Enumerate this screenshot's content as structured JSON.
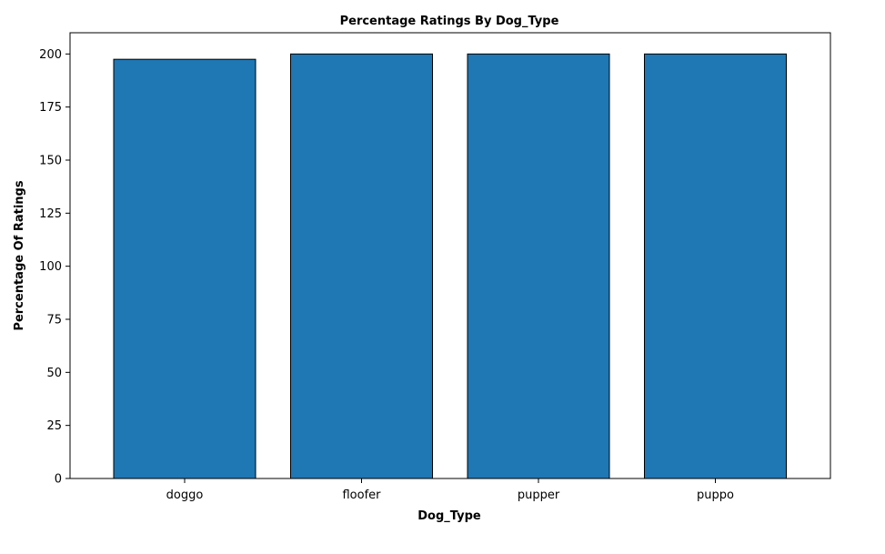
{
  "chart_data": {
    "type": "bar",
    "title": "Percentage Ratings By Dog_Type",
    "xlabel": "Dog_Type",
    "ylabel": "Percentage Of Ratings",
    "categories": [
      "doggo",
      "floofer",
      "pupper",
      "puppo"
    ],
    "values": [
      197.5,
      200,
      200,
      200
    ],
    "ylim": [
      0,
      210
    ],
    "yticks": [
      0,
      25,
      50,
      75,
      100,
      125,
      150,
      175,
      200
    ],
    "grid": false,
    "legend": "none",
    "colors": {
      "bar_fill": "#1f77b4",
      "bar_edge": "#000000",
      "axis": "#000000",
      "background": "#ffffff"
    }
  }
}
